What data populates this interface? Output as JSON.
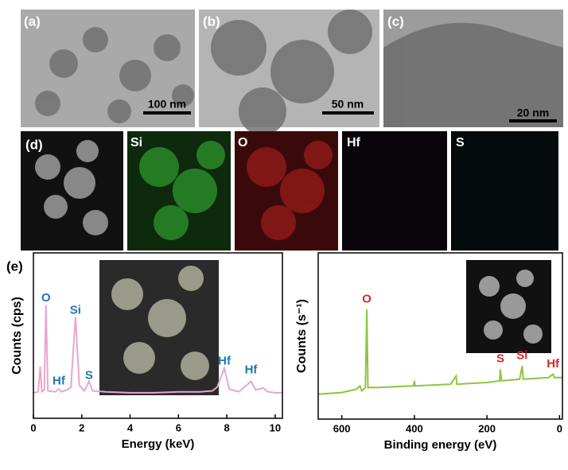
{
  "panels": {
    "labels": [
      "(a)",
      "(b)",
      "(c)",
      "(d)",
      "(e)"
    ],
    "scale_bars": [
      "100 nm",
      "50 nm",
      "20 nm"
    ],
    "maps": [
      "Si",
      "O",
      "Hf",
      "S"
    ]
  },
  "chart_data": [
    {
      "type": "line",
      "x_label": "Energy (keV)",
      "y_label": "Counts (cps)",
      "xlim": [
        0,
        10.3
      ],
      "ylim": [
        -25,
        150
      ],
      "xticks": [
        0,
        2,
        4,
        6,
        8,
        10
      ],
      "series": [
        {
          "color": "#e8a6cc",
          "x": [
            0,
            0.2,
            0.28,
            0.35,
            0.45,
            0.52,
            0.6,
            0.9,
            1.05,
            1.15,
            1.4,
            1.55,
            1.74,
            1.9,
            2.1,
            2.3,
            2.45,
            3,
            4,
            5,
            6,
            6.9,
            7.4,
            7.6,
            7.9,
            8.1,
            8.5,
            9.0,
            9.2,
            9.5,
            9.7,
            10,
            10.3
          ],
          "values": [
            2,
            3,
            30,
            3,
            5,
            95,
            4,
            3,
            6,
            3,
            5,
            8,
            82,
            10,
            4,
            14,
            4,
            3,
            2,
            2,
            3,
            3,
            4,
            8,
            28,
            6,
            3,
            14,
            5,
            7,
            3,
            2,
            2
          ]
        }
      ],
      "annotation_color": "#1f77b4",
      "annotations": [
        {
          "text": "O",
          "x": 0.52,
          "y": 102
        },
        {
          "text": "Si",
          "x": 1.74,
          "y": 89
        },
        {
          "text": "Hf",
          "x": 1.05,
          "y": 14
        },
        {
          "text": "S",
          "x": 2.3,
          "y": 20
        },
        {
          "text": "Hf",
          "x": 7.9,
          "y": 35
        },
        {
          "text": "Hf",
          "x": 9.0,
          "y": 26
        }
      ]
    },
    {
      "type": "line",
      "x_label": "Binding energy (eV)",
      "y_label": "Counts (s⁻¹)",
      "xlim": [
        665,
        -8
      ],
      "ylim": [
        0,
        100
      ],
      "xticks": [
        600,
        400,
        200,
        0
      ],
      "series": [
        {
          "color": "#8dc63f",
          "x": [
            665,
            600,
            560,
            550,
            545,
            535,
            531,
            528,
            500,
            402,
            400,
            398,
            300,
            285,
            283,
            200,
            165,
            163,
            160,
            110,
            103,
            100,
            30,
            18,
            14,
            0,
            -8
          ],
          "values": [
            15,
            16,
            18,
            20,
            17,
            19,
            66,
            19,
            19,
            20,
            23,
            20,
            21,
            26,
            21,
            22,
            23,
            30,
            23,
            24,
            32,
            24,
            25,
            27,
            25,
            25,
            25
          ]
        }
      ],
      "annotation_color": "#d62728",
      "annotations": [
        {
          "text": "O",
          "x": 531,
          "y": 72
        },
        {
          "text": "S",
          "x": 163,
          "y": 36
        },
        {
          "text": "Si",
          "x": 103,
          "y": 38
        },
        {
          "text": "Hf",
          "x": 18,
          "y": 33
        }
      ]
    }
  ]
}
